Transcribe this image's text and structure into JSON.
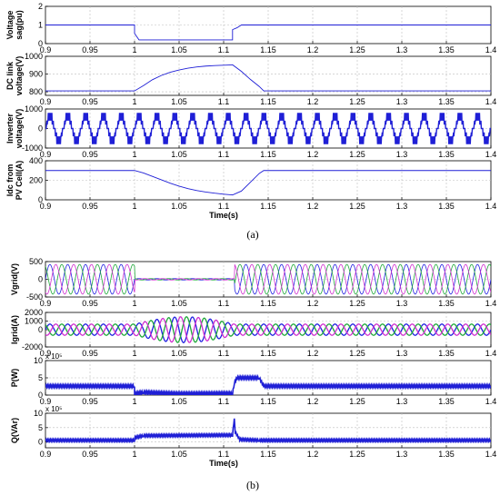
{
  "colors": {
    "primary": "#1f1fd6",
    "phase_a": "#2020e0",
    "phase_b": "#1fa83a",
    "phase_c": "#cf2fcf",
    "grid": "#bdbdbd"
  },
  "figure": {
    "caption_a": "(a)",
    "caption_b": "(b)"
  },
  "chart_data": [
    {
      "type": "line",
      "ylabel": "Voltage sag(pu)",
      "ylabel_lines": [
        "Voltage",
        "sag(pu)"
      ],
      "xlim": [
        0.9,
        1.4
      ],
      "ylim": [
        0,
        2
      ],
      "yticks": [
        "0",
        "1",
        "2"
      ],
      "xticks": [
        "0.9",
        "0.95",
        "1",
        "1.05",
        "1.1",
        "1.15",
        "1.2",
        "1.25",
        "1.3",
        "1.35",
        "1.4"
      ],
      "xlabel": "",
      "series": [
        {
          "x": [
            0.9,
            1.0,
            1.0,
            1.005,
            1.11,
            1.11,
            1.115,
            1.12,
            1.4
          ],
          "y": [
            1,
            1,
            0.55,
            0.2,
            0.2,
            0.75,
            0.85,
            1.0,
            1.0
          ]
        }
      ]
    },
    {
      "type": "line",
      "ylabel": "DC link voltage(V)",
      "ylabel_lines": [
        "DC link",
        "voltage(V)"
      ],
      "xlim": [
        0.9,
        1.4
      ],
      "ylim": [
        780,
        1000
      ],
      "yticks": [
        "800",
        "900",
        "1000"
      ],
      "xticks": [
        "0.9",
        "0.95",
        "1",
        "1.05",
        "1.1",
        "1.15",
        "1.2",
        "1.25",
        "1.3",
        "1.35",
        "1.4"
      ],
      "xlabel": "",
      "series": [
        {
          "x": [
            0.9,
            1.0,
            1.01,
            1.02,
            1.03,
            1.04,
            1.05,
            1.06,
            1.07,
            1.08,
            1.09,
            1.1,
            1.11,
            1.12,
            1.13,
            1.14,
            1.145,
            1.4
          ],
          "y": [
            805,
            805,
            835,
            868,
            892,
            910,
            923,
            933,
            940,
            945,
            948,
            950,
            952,
            915,
            870,
            830,
            805,
            805
          ]
        }
      ]
    },
    {
      "type": "line",
      "ylabel": "Inverter voltage(V)",
      "ylabel_lines": [
        "Inverter",
        "voltage(V)"
      ],
      "xlim": [
        0.9,
        1.4
      ],
      "ylim": [
        -1000,
        1000
      ],
      "yticks": [
        "-1000",
        "0",
        "1000"
      ],
      "xticks": [
        "0.9",
        "0.95",
        "1",
        "1.05",
        "1.1",
        "1.15",
        "1.2",
        "1.25",
        "1.3",
        "1.35",
        "1.4"
      ],
      "xlabel": "",
      "series": [
        {
          "waveform": "multilevel-pwm",
          "frequency_hz": 50,
          "peak": 800
        }
      ]
    },
    {
      "type": "line",
      "ylabel": "Idc from PV Cell(A)",
      "ylabel_lines": [
        "Idc from",
        "PV Cell(A)"
      ],
      "xlim": [
        0.9,
        1.4
      ],
      "ylim": [
        0,
        400
      ],
      "yticks": [
        "0",
        "200",
        "400"
      ],
      "xticks": [
        "0.9",
        "0.95",
        "1",
        "1.05",
        "1.1",
        "1.15",
        "1.2",
        "1.25",
        "1.3",
        "1.35",
        "1.4"
      ],
      "xlabel": "Time(s)",
      "series": [
        {
          "x": [
            0.9,
            1.0,
            1.01,
            1.02,
            1.03,
            1.04,
            1.05,
            1.06,
            1.07,
            1.08,
            1.09,
            1.1,
            1.11,
            1.12,
            1.13,
            1.14,
            1.145,
            1.4
          ],
          "y": [
            300,
            300,
            275,
            240,
            205,
            170,
            140,
            115,
            95,
            80,
            68,
            58,
            50,
            90,
            180,
            270,
            300,
            300
          ]
        }
      ]
    },
    {
      "type": "line",
      "ylabel": "Vgrid(V)",
      "ylabel_lines": [
        "Vgrid(V)"
      ],
      "xlim": [
        0.9,
        1.4
      ],
      "ylim": [
        -500,
        500
      ],
      "yticks": [
        "-500",
        "0",
        "500"
      ],
      "xticks": [
        "0.9",
        "0.95",
        "1",
        "1.05",
        "1.1",
        "1.15",
        "1.2",
        "1.25",
        "1.3",
        "1.35",
        "1.4"
      ],
      "xlabel": "",
      "series": [
        {
          "name_hidden": "phase a",
          "waveform": "sine",
          "frequency_hz": 50,
          "amplitude": 420,
          "sag_amplitude": 20,
          "sag": [
            1.0,
            1.112
          ]
        }
      ]
    },
    {
      "type": "line",
      "ylabel": "Igrid(A)",
      "ylabel_lines": [
        "Igrid(A)"
      ],
      "xlim": [
        0.9,
        1.4
      ],
      "ylim": [
        -2000,
        2000
      ],
      "yticks": [
        "-2000",
        "0",
        "1000",
        "2000"
      ],
      "xticks": [
        "0.9",
        "0.95",
        "1",
        "1.05",
        "1.1",
        "1.15",
        "1.2",
        "1.25",
        "1.3",
        "1.35",
        "1.4"
      ],
      "xlabel": "",
      "series": [
        {
          "waveform": "sine",
          "frequency_hz": 50,
          "amplitude": 650,
          "fault_peak_amplitude": 1500,
          "fault": [
            1.0,
            1.14
          ]
        }
      ]
    },
    {
      "type": "line",
      "ylabel": "P(W)",
      "ylabel_lines": [
        "P(W)"
      ],
      "exponent": "x 10⁵",
      "xlim": [
        0.9,
        1.4
      ],
      "ylim": [
        0,
        10
      ],
      "yticks": [
        "0",
        "5",
        "10"
      ],
      "xticks": [
        "0.9",
        "0.95",
        "1",
        "1.05",
        "1.1",
        "1.15",
        "1.2",
        "1.25",
        "1.3",
        "1.35",
        "1.4"
      ],
      "xlabel": "",
      "series": [
        {
          "x": [
            0.9,
            1.0,
            1.0,
            1.01,
            1.05,
            1.11,
            1.112,
            1.115,
            1.14,
            1.145,
            1.4
          ],
          "y": [
            2.6,
            2.6,
            0.4,
            0.8,
            0.4,
            0.5,
            3.5,
            5.0,
            5.0,
            2.6,
            2.6
          ]
        }
      ]
    },
    {
      "type": "line",
      "ylabel": "Q(VAr)",
      "ylabel_lines": [
        "Q(VAr)"
      ],
      "exponent": "x 10⁵",
      "xlim": [
        0.9,
        1.4
      ],
      "ylim": [
        -2,
        10
      ],
      "yticks": [
        "0",
        "5",
        "10"
      ],
      "xticks": [
        "0.9",
        "0.95",
        "1",
        "1.05",
        "1.1",
        "1.15",
        "1.2",
        "1.25",
        "1.3",
        "1.35",
        "1.4"
      ],
      "xlabel": "Time(s)",
      "series": [
        {
          "x": [
            0.9,
            1.0,
            1.0,
            1.01,
            1.11,
            1.112,
            1.113,
            1.118,
            1.14,
            1.4
          ],
          "y": [
            0.6,
            0.6,
            1.5,
            2.2,
            2.4,
            8.5,
            3.5,
            0.9,
            0.6,
            0.6
          ]
        }
      ]
    }
  ]
}
